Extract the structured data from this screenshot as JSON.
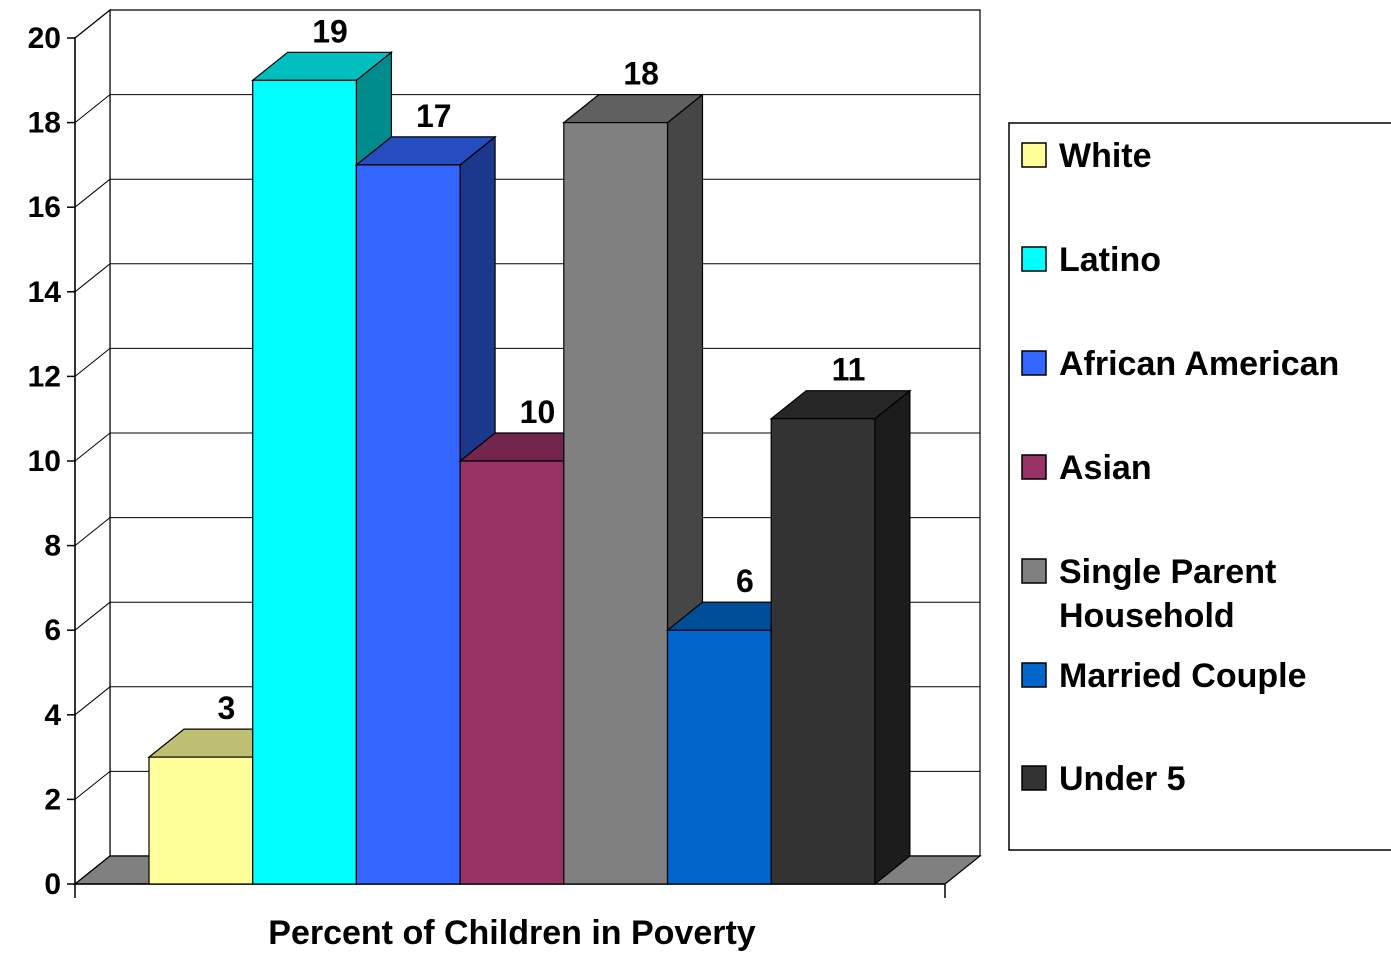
{
  "chart_data": {
    "type": "bar",
    "style": "3d-clustered",
    "xlabel": "Percent of Children in Poverty",
    "ylabel": "",
    "title": "",
    "ylim": [
      0,
      20
    ],
    "yticks": [
      0,
      2,
      4,
      6,
      8,
      10,
      12,
      14,
      16,
      18,
      20
    ],
    "grid": true,
    "legend_position": "right",
    "series": [
      {
        "name": "White",
        "value": 3,
        "label": "3",
        "color": "#FFFF99"
      },
      {
        "name": "Latino",
        "value": 19,
        "label": "19",
        "color": "#00FFFF"
      },
      {
        "name": "African American",
        "value": 17,
        "label": "17",
        "color": "#3366FF"
      },
      {
        "name": "Asian",
        "value": 10,
        "label": "10",
        "color": "#993366"
      },
      {
        "name": "Single Parent Household",
        "value": 18,
        "label": "18",
        "color": "#808080"
      },
      {
        "name": "Married Couple",
        "value": 6,
        "label": "6",
        "color": "#0066CC"
      },
      {
        "name": "Under 5",
        "value": 11,
        "label": "11",
        "color": "#333333"
      }
    ]
  }
}
